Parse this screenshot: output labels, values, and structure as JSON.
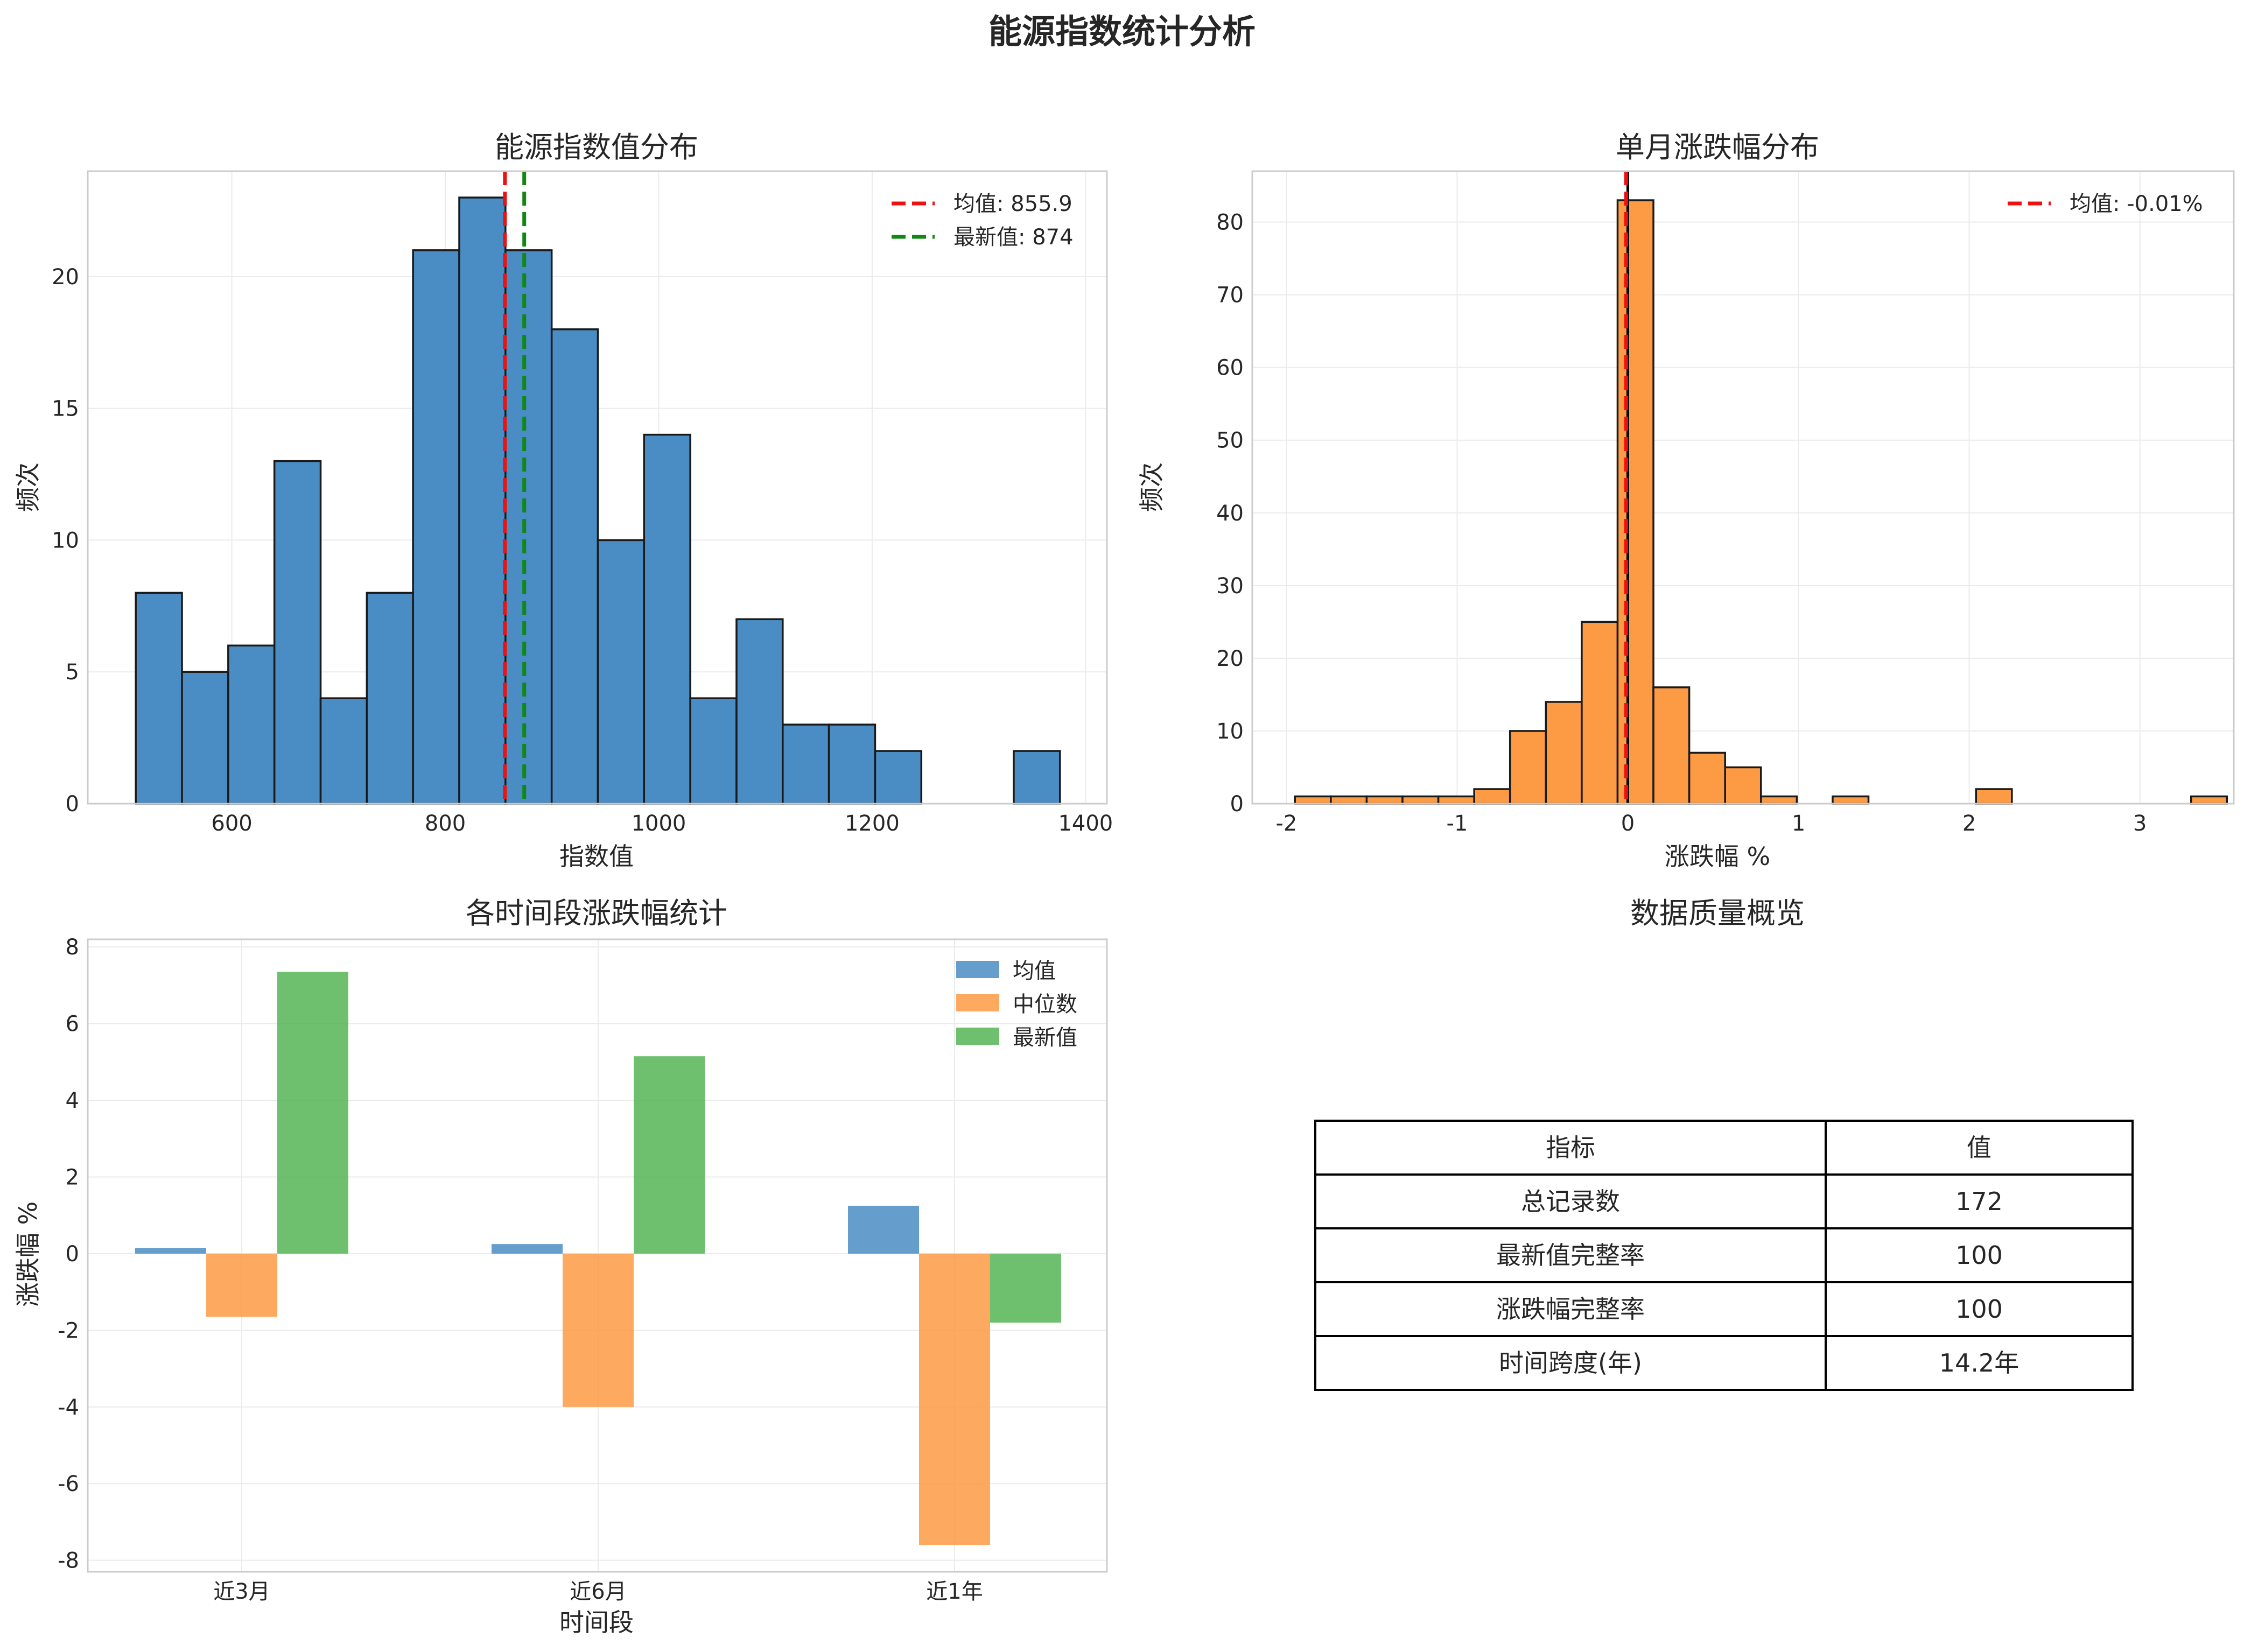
{
  "figure": {
    "title": "能源指数统计分析"
  },
  "chart_data": [
    {
      "type": "bar",
      "subtype": "histogram",
      "title": "能源指数值分布",
      "xlabel": "指数值",
      "ylabel": "频次",
      "bin_start": 510,
      "bin_width": 43.3,
      "counts": [
        8,
        5,
        6,
        13,
        4,
        8,
        21,
        23,
        21,
        18,
        10,
        14,
        4,
        7,
        3,
        3,
        2,
        0,
        0,
        2
      ],
      "xlim": [
        465,
        1420
      ],
      "ylim": [
        0,
        24
      ],
      "xticks": [
        600,
        800,
        1000,
        1200,
        1400
      ],
      "yticks": [
        0,
        5,
        10,
        15,
        20
      ],
      "color": "#4a8cc4",
      "grid": true,
      "legend_position": "upper right",
      "vlines": [
        {
          "label": "均值: 855.9",
          "x": 855.9,
          "color": "#ee1111"
        },
        {
          "label": "最新值: 874",
          "x": 874,
          "color": "#118811"
        }
      ]
    },
    {
      "type": "bar",
      "subtype": "histogram",
      "title": "单月涨跌幅分布",
      "xlabel": "涨跌幅 %",
      "ylabel": "频次",
      "bin_start": -1.95,
      "bin_width": 0.21,
      "counts": [
        1,
        1,
        1,
        1,
        1,
        2,
        10,
        14,
        25,
        83,
        16,
        7,
        5,
        1,
        0,
        1,
        0,
        0,
        0,
        2,
        0,
        0,
        0,
        0,
        0,
        1
      ],
      "xlim": [
        -2.2,
        3.55
      ],
      "ylim": [
        0,
        87
      ],
      "xticks": [
        -2,
        -1,
        0,
        1,
        2,
        3
      ],
      "yticks": [
        0,
        10,
        20,
        30,
        40,
        50,
        60,
        70,
        80
      ],
      "color": "#fd9a44",
      "grid": true,
      "legend_position": "upper right",
      "zero_line": {
        "x": 0,
        "color": "#000000"
      },
      "vlines": [
        {
          "label": "均值: -0.01%",
          "x": -0.01,
          "color": "#ee1111"
        }
      ]
    },
    {
      "type": "bar",
      "subtype": "grouped",
      "title": "各时间段涨跌幅统计",
      "xlabel": "时间段",
      "ylabel": "涨跌幅 %",
      "categories": [
        "近3月",
        "近6月",
        "近1年"
      ],
      "series": [
        {
          "name": "均值",
          "values": [
            0.15,
            0.25,
            1.25
          ],
          "color": "#4a8cc4"
        },
        {
          "name": "中位数",
          "values": [
            -1.65,
            -4.0,
            -7.6
          ],
          "color": "#fd9a44"
        },
        {
          "name": "最新值",
          "values": [
            7.35,
            5.15,
            -1.8
          ],
          "color": "#55b555"
        }
      ],
      "ylim": [
        -8.3,
        8.2
      ],
      "yticks": [
        -8,
        -6,
        -4,
        -2,
        0,
        2,
        4,
        6,
        8
      ],
      "grid": true,
      "legend_position": "upper right"
    },
    {
      "type": "table",
      "title": "数据质量概览",
      "columns": [
        "指标",
        "值"
      ],
      "rows": [
        [
          "总记录数",
          "172"
        ],
        [
          "最新值完整率",
          "100"
        ],
        [
          "涨跌幅完整率",
          "100"
        ],
        [
          "时间跨度(年)",
          "14.2年"
        ]
      ]
    }
  ]
}
